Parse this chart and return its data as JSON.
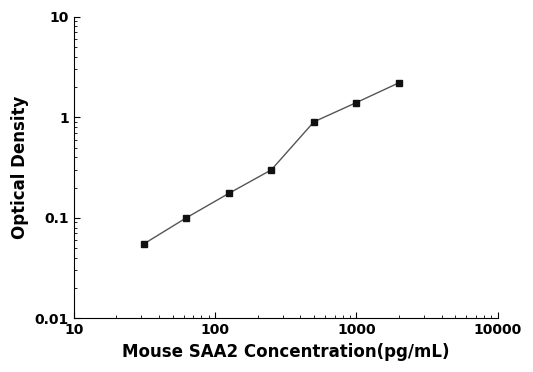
{
  "x": [
    31.25,
    62.5,
    125,
    250,
    500,
    1000,
    2000
  ],
  "y": [
    0.055,
    0.1,
    0.175,
    0.3,
    0.9,
    1.4,
    2.2
  ],
  "line_color": "#555555",
  "marker": "s",
  "marker_color": "#111111",
  "marker_size": 5,
  "linewidth": 1.0,
  "xlabel": "Mouse SAA2 Concentration(pg/mL)",
  "ylabel": "Optical Density",
  "xlim": [
    10,
    10000
  ],
  "ylim": [
    0.01,
    10
  ],
  "xlabel_fontsize": 12,
  "ylabel_fontsize": 12,
  "tick_fontsize": 10,
  "background_color": "#ffffff",
  "figsize": [
    5.33,
    3.72
  ],
  "dpi": 100
}
